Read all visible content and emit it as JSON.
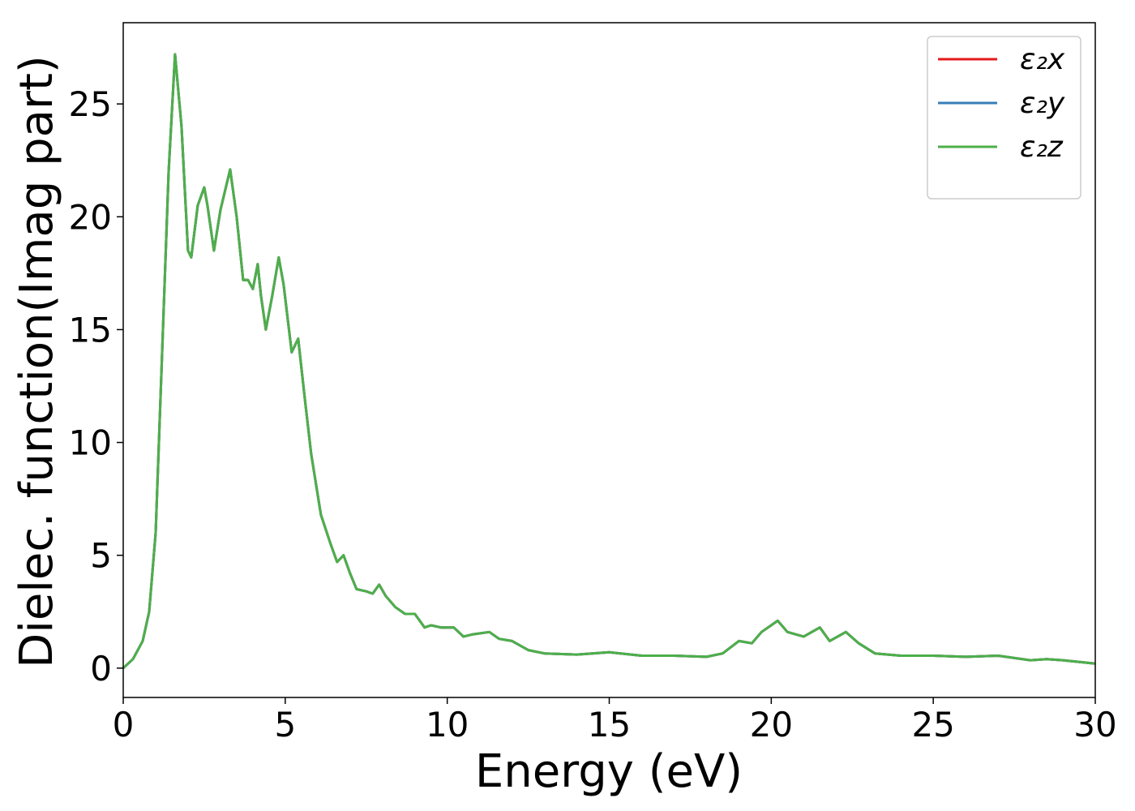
{
  "chart_data": {
    "type": "line",
    "xlabel": "Energy (eV)",
    "ylabel": "Dielec. function(Imag part)",
    "x": [
      0,
      0.3,
      0.6,
      0.8,
      1.0,
      1.2,
      1.4,
      1.6,
      1.8,
      2.0,
      2.1,
      2.3,
      2.5,
      2.6,
      2.8,
      3.0,
      3.3,
      3.5,
      3.7,
      3.85,
      4.0,
      4.15,
      4.25,
      4.4,
      4.6,
      4.8,
      4.95,
      5.2,
      5.4,
      5.6,
      5.8,
      6.1,
      6.4,
      6.6,
      6.8,
      7.0,
      7.2,
      7.5,
      7.7,
      7.9,
      8.1,
      8.4,
      8.7,
      9.0,
      9.3,
      9.5,
      9.8,
      10.2,
      10.5,
      10.8,
      11.3,
      11.6,
      12.0,
      12.5,
      13.0,
      14.0,
      15.0,
      16.0,
      17.0,
      18.0,
      18.5,
      19.0,
      19.4,
      19.7,
      20.2,
      20.5,
      21.0,
      21.5,
      21.8,
      22.3,
      22.7,
      23.2,
      24.0,
      25.0,
      26.0,
      27.0,
      28.0,
      28.5,
      29.0,
      30.0
    ],
    "series": [
      {
        "name": "ε₂x",
        "color": "#e41a1c",
        "values": [
          0,
          0.4,
          1.2,
          2.5,
          6,
          14,
          22,
          27.2,
          24,
          18.5,
          18.2,
          20.5,
          21.3,
          20.5,
          18.5,
          20.3,
          22.1,
          20,
          17.2,
          17.2,
          16.8,
          17.9,
          16.5,
          15.0,
          16.5,
          18.2,
          17,
          14,
          14.6,
          12,
          9.5,
          6.8,
          5.5,
          4.7,
          5.0,
          4.2,
          3.5,
          3.4,
          3.3,
          3.7,
          3.2,
          2.7,
          2.4,
          2.4,
          1.8,
          1.9,
          1.8,
          1.8,
          1.4,
          1.5,
          1.6,
          1.3,
          1.2,
          0.8,
          0.65,
          0.6,
          0.7,
          0.55,
          0.55,
          0.5,
          0.65,
          1.2,
          1.1,
          1.6,
          2.1,
          1.6,
          1.4,
          1.8,
          1.2,
          1.6,
          1.1,
          0.65,
          0.55,
          0.55,
          0.5,
          0.55,
          0.35,
          0.4,
          0.35,
          0.2
        ]
      },
      {
        "name": "ε₂y",
        "color": "#377eb8",
        "values": [
          0,
          0.4,
          1.2,
          2.5,
          6,
          14,
          22,
          27.2,
          24,
          18.5,
          18.2,
          20.5,
          21.3,
          20.5,
          18.5,
          20.3,
          22.1,
          20,
          17.2,
          17.2,
          16.8,
          17.9,
          16.5,
          15.0,
          16.5,
          18.2,
          17,
          14,
          14.6,
          12,
          9.5,
          6.8,
          5.5,
          4.7,
          5.0,
          4.2,
          3.5,
          3.4,
          3.3,
          3.7,
          3.2,
          2.7,
          2.4,
          2.4,
          1.8,
          1.9,
          1.8,
          1.8,
          1.4,
          1.5,
          1.6,
          1.3,
          1.2,
          0.8,
          0.65,
          0.6,
          0.7,
          0.55,
          0.55,
          0.5,
          0.65,
          1.2,
          1.1,
          1.6,
          2.1,
          1.6,
          1.4,
          1.8,
          1.2,
          1.6,
          1.1,
          0.65,
          0.55,
          0.55,
          0.5,
          0.55,
          0.35,
          0.4,
          0.35,
          0.2
        ]
      },
      {
        "name": "ε₂z",
        "color": "#4daf4a",
        "values": [
          0,
          0.4,
          1.2,
          2.5,
          6,
          14,
          22,
          27.2,
          24,
          18.5,
          18.2,
          20.5,
          21.3,
          20.5,
          18.5,
          20.3,
          22.1,
          20,
          17.2,
          17.2,
          16.8,
          17.9,
          16.5,
          15.0,
          16.5,
          18.2,
          17,
          14,
          14.6,
          12,
          9.5,
          6.8,
          5.5,
          4.7,
          5.0,
          4.2,
          3.5,
          3.4,
          3.3,
          3.7,
          3.2,
          2.7,
          2.4,
          2.4,
          1.8,
          1.9,
          1.8,
          1.8,
          1.4,
          1.5,
          1.6,
          1.3,
          1.2,
          0.8,
          0.65,
          0.6,
          0.7,
          0.55,
          0.55,
          0.5,
          0.65,
          1.2,
          1.1,
          1.6,
          2.1,
          1.6,
          1.4,
          1.8,
          1.2,
          1.6,
          1.1,
          0.65,
          0.55,
          0.55,
          0.5,
          0.55,
          0.35,
          0.4,
          0.35,
          0.2
        ]
      }
    ],
    "xlim": [
      0,
      30
    ],
    "xticks": [
      0,
      5,
      10,
      15,
      20,
      25,
      30
    ],
    "ylim": [
      -1.3,
      28.6
    ],
    "yticks": [
      0,
      5,
      10,
      15,
      20,
      25
    ],
    "legend": "upper right",
    "grid": false
  }
}
